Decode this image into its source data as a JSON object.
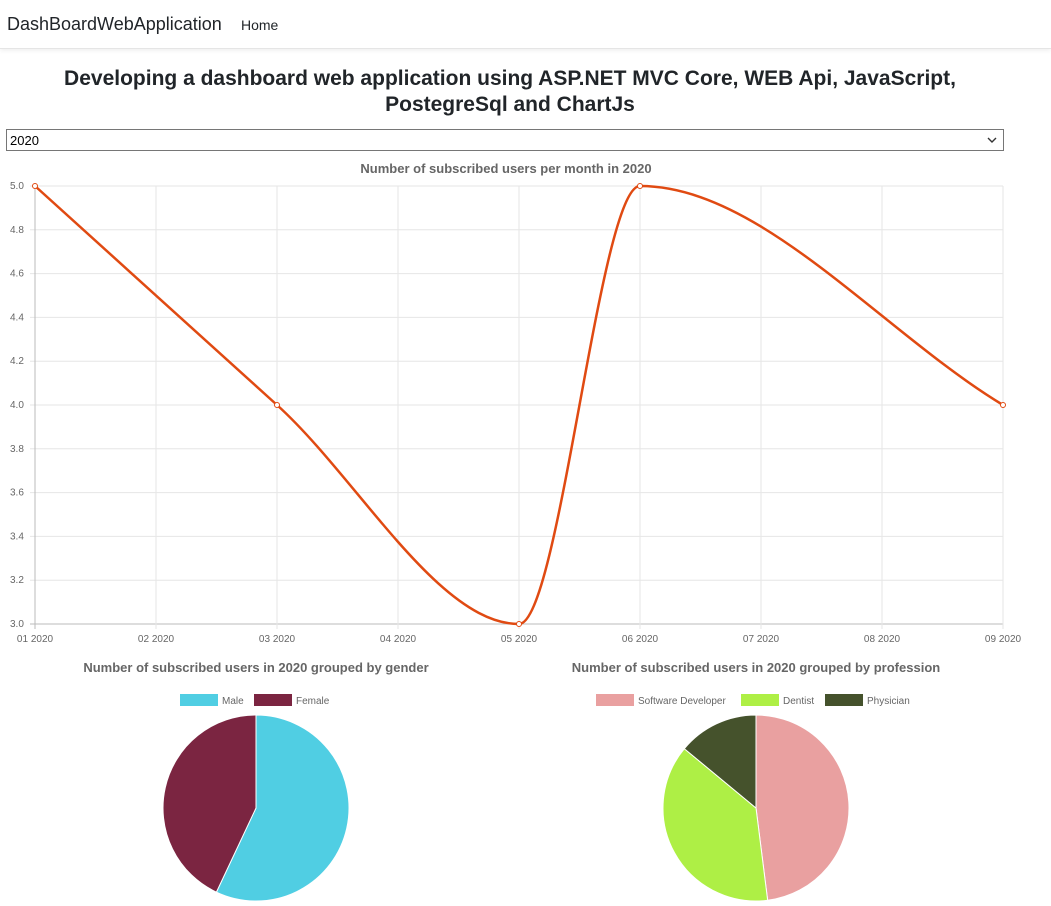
{
  "navbar": {
    "brand": "DashBoardWebApplication",
    "home_link": "Home"
  },
  "page": {
    "title": "Developing a dashboard web application using ASP.NET MVC Core, WEB Api, JavaScript, PostegreSql and ChartJs"
  },
  "year_select": {
    "selected": "2020"
  },
  "colors": {
    "line": "#e04a12",
    "male": "#50cee3",
    "female": "#7b2541",
    "software_developer": "#e9a0a0",
    "dentist": "#aeef45",
    "physician": "#45522c"
  },
  "chart_data": [
    {
      "type": "line",
      "title": "Number of subscribed users per month in 2020",
      "x": [
        "01 2020",
        "02 2020",
        "03 2020",
        "04 2020",
        "05 2020",
        "06 2020",
        "07 2020",
        "08 2020",
        "09 2020"
      ],
      "points": [
        {
          "x": "01 2020",
          "y": 5
        },
        {
          "x": "03 2020",
          "y": 4
        },
        {
          "x": "05 2020",
          "y": 3
        },
        {
          "x": "06 2020",
          "y": 5
        },
        {
          "x": "09 2020",
          "y": 4
        }
      ],
      "ylim": [
        3.0,
        5.0
      ],
      "yticks": [
        "5.0",
        "4.8",
        "4.6",
        "4.4",
        "4.2",
        "4.0",
        "3.8",
        "3.6",
        "3.4",
        "3.2",
        "3.0"
      ],
      "grid": true
    },
    {
      "type": "pie",
      "title": "Number of subscribed users in 2020 grouped by gender",
      "labels": [
        "Male",
        "Female"
      ],
      "values": [
        57,
        43
      ],
      "legend": "top"
    },
    {
      "type": "pie",
      "title": "Number of subscribed users in 2020 grouped by profession",
      "labels": [
        "Software Developer",
        "Dentist",
        "Physician"
      ],
      "values": [
        48,
        38,
        14
      ],
      "legend": "top"
    }
  ]
}
